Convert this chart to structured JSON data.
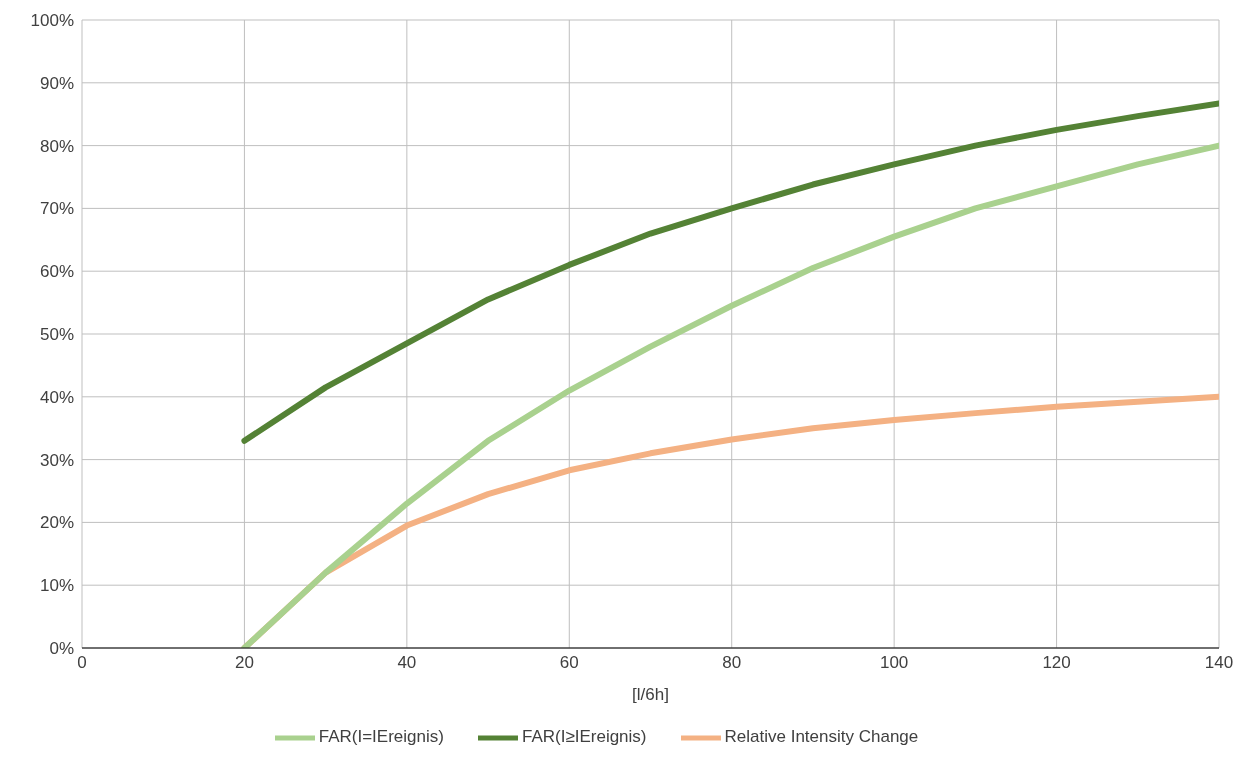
{
  "chart_data": {
    "type": "line",
    "xlabel": "[l/6h]",
    "x": [
      20,
      30,
      40,
      50,
      60,
      70,
      80,
      90,
      100,
      110,
      120,
      130,
      140
    ],
    "series": [
      {
        "name": "Relative Intensity Change",
        "color": "#f4b183",
        "values": [
          0,
          12,
          19.5,
          24.5,
          28.3,
          31,
          33.2,
          35,
          36.3,
          37.4,
          38.4,
          39.2,
          40
        ]
      },
      {
        "name": "FAR(I=IEreignis)",
        "color": "#a9d18e",
        "values": [
          0,
          12,
          23,
          33,
          41,
          48,
          54.5,
          60.5,
          65.5,
          70,
          73.5,
          77,
          80
        ]
      },
      {
        "name": "FAR(I≥IEreignis)",
        "color": "#548235",
        "values": [
          33,
          41.5,
          48.5,
          55.5,
          61,
          66,
          70,
          73.8,
          77,
          80,
          82.5,
          84.7,
          86.7
        ]
      }
    ],
    "xlim": [
      0,
      140
    ],
    "xticks": [
      0,
      20,
      40,
      60,
      80,
      100,
      120,
      140
    ],
    "ylim": [
      0,
      100
    ],
    "yticks": [
      {
        "value": 0,
        "label": "0%"
      },
      {
        "value": 10,
        "label": "10%"
      },
      {
        "value": 20,
        "label": "20%"
      },
      {
        "value": 30,
        "label": "30%"
      },
      {
        "value": 40,
        "label": "40%"
      },
      {
        "value": 50,
        "label": "50%"
      },
      {
        "value": 60,
        "label": "60%"
      },
      {
        "value": 70,
        "label": "70%"
      },
      {
        "value": 80,
        "label": "80%"
      },
      {
        "value": 90,
        "label": "90%"
      },
      {
        "value": 100,
        "label": "100%"
      }
    ],
    "grid": true,
    "legend": "bottom",
    "marker": "none",
    "line_style": "solid"
  }
}
